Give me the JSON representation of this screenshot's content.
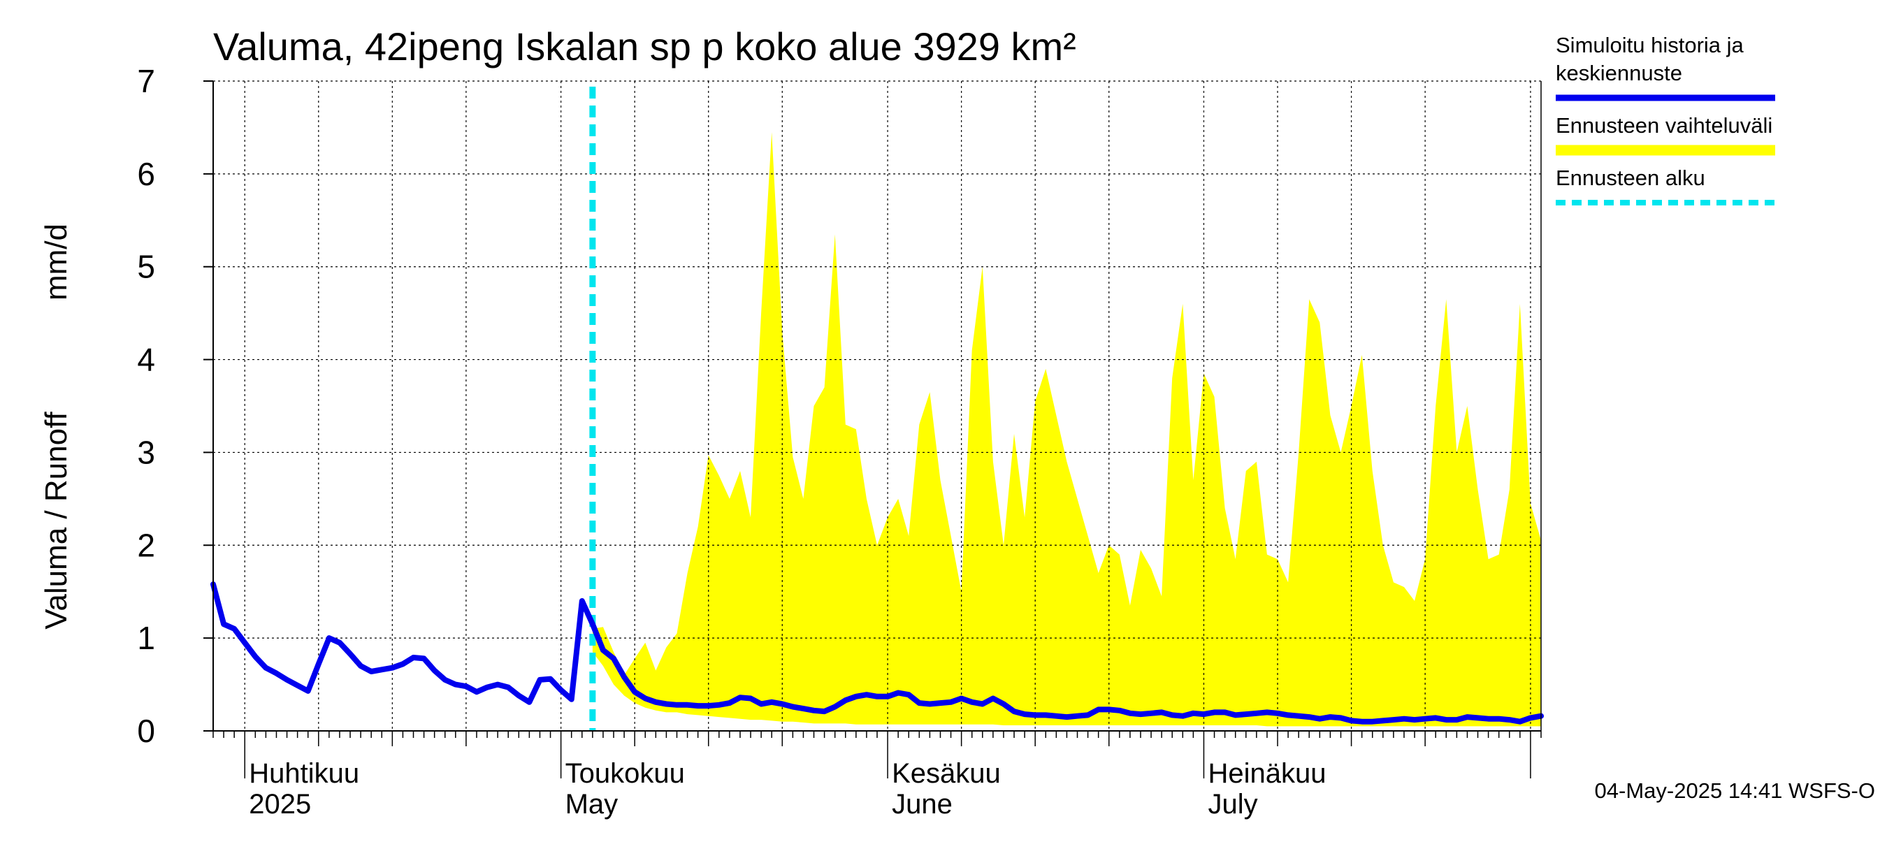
{
  "chart_data": {
    "type": "line",
    "title": "Valuma, 42ipeng Iskalan sp p koko alue 3929 km²",
    "ylabel_left": "Valuma / Runoff",
    "ylabel_unit": "mm/d",
    "ylim": [
      0,
      7
    ],
    "yticks": [
      0,
      1,
      2,
      3,
      4,
      5,
      6,
      7
    ],
    "x_start": "2025-03-29",
    "x_end": "2025-08-02",
    "forecast_start": "2025-05-04",
    "grid": true,
    "legend_position": "right",
    "month_ticks": [
      {
        "date": "2025-04-01",
        "label_fi": "Huhtikuu",
        "label_en": "2025"
      },
      {
        "date": "2025-05-01",
        "label_fi": "Toukokuu",
        "label_en": "May"
      },
      {
        "date": "2025-06-01",
        "label_fi": "Kesäkuu",
        "label_en": "June"
      },
      {
        "date": "2025-07-01",
        "label_fi": "Heinäkuu",
        "label_en": "July"
      }
    ],
    "series": [
      {
        "name": "Simuloitu historia ja keskiennuste",
        "color": "#0000ee",
        "points": [
          [
            "2025-03-29",
            1.58
          ],
          [
            "2025-03-30",
            1.15
          ],
          [
            "2025-03-31",
            1.1
          ],
          [
            "2025-04-01",
            0.95
          ],
          [
            "2025-04-02",
            0.8
          ],
          [
            "2025-04-03",
            0.68
          ],
          [
            "2025-04-04",
            0.62
          ],
          [
            "2025-04-05",
            0.55
          ],
          [
            "2025-04-06",
            0.49
          ],
          [
            "2025-04-07",
            0.43
          ],
          [
            "2025-04-08",
            0.72
          ],
          [
            "2025-04-09",
            1.0
          ],
          [
            "2025-04-10",
            0.95
          ],
          [
            "2025-04-11",
            0.83
          ],
          [
            "2025-04-12",
            0.7
          ],
          [
            "2025-04-13",
            0.64
          ],
          [
            "2025-04-14",
            0.66
          ],
          [
            "2025-04-15",
            0.68
          ],
          [
            "2025-04-16",
            0.72
          ],
          [
            "2025-04-17",
            0.79
          ],
          [
            "2025-04-18",
            0.78
          ],
          [
            "2025-04-19",
            0.65
          ],
          [
            "2025-04-20",
            0.55
          ],
          [
            "2025-04-21",
            0.5
          ],
          [
            "2025-04-22",
            0.48
          ],
          [
            "2025-04-23",
            0.42
          ],
          [
            "2025-04-24",
            0.47
          ],
          [
            "2025-04-25",
            0.5
          ],
          [
            "2025-04-26",
            0.47
          ],
          [
            "2025-04-27",
            0.38
          ],
          [
            "2025-04-28",
            0.31
          ],
          [
            "2025-04-29",
            0.55
          ],
          [
            "2025-04-30",
            0.56
          ],
          [
            "2025-05-01",
            0.44
          ],
          [
            "2025-05-02",
            0.34
          ],
          [
            "2025-05-03",
            1.4
          ],
          [
            "2025-05-04",
            1.15
          ],
          [
            "2025-05-05",
            0.87
          ],
          [
            "2025-05-06",
            0.78
          ],
          [
            "2025-05-07",
            0.58
          ],
          [
            "2025-05-08",
            0.42
          ],
          [
            "2025-05-09",
            0.35
          ],
          [
            "2025-05-10",
            0.31
          ],
          [
            "2025-05-11",
            0.29
          ],
          [
            "2025-05-12",
            0.28
          ],
          [
            "2025-05-13",
            0.28
          ],
          [
            "2025-05-14",
            0.27
          ],
          [
            "2025-05-15",
            0.27
          ],
          [
            "2025-05-16",
            0.28
          ],
          [
            "2025-05-17",
            0.3
          ],
          [
            "2025-05-18",
            0.36
          ],
          [
            "2025-05-19",
            0.35
          ],
          [
            "2025-05-20",
            0.29
          ],
          [
            "2025-05-21",
            0.31
          ],
          [
            "2025-05-22",
            0.29
          ],
          [
            "2025-05-23",
            0.26
          ],
          [
            "2025-05-24",
            0.24
          ],
          [
            "2025-05-25",
            0.22
          ],
          [
            "2025-05-26",
            0.21
          ],
          [
            "2025-05-27",
            0.26
          ],
          [
            "2025-05-28",
            0.33
          ],
          [
            "2025-05-29",
            0.37
          ],
          [
            "2025-05-30",
            0.39
          ],
          [
            "2025-05-31",
            0.37
          ],
          [
            "2025-06-01",
            0.37
          ],
          [
            "2025-06-02",
            0.41
          ],
          [
            "2025-06-03",
            0.39
          ],
          [
            "2025-06-04",
            0.3
          ],
          [
            "2025-06-05",
            0.29
          ],
          [
            "2025-06-06",
            0.3
          ],
          [
            "2025-06-07",
            0.31
          ],
          [
            "2025-06-08",
            0.35
          ],
          [
            "2025-06-09",
            0.31
          ],
          [
            "2025-06-10",
            0.29
          ],
          [
            "2025-06-11",
            0.35
          ],
          [
            "2025-06-12",
            0.29
          ],
          [
            "2025-06-13",
            0.21
          ],
          [
            "2025-06-14",
            0.18
          ],
          [
            "2025-06-15",
            0.17
          ],
          [
            "2025-06-16",
            0.17
          ],
          [
            "2025-06-17",
            0.16
          ],
          [
            "2025-06-18",
            0.15
          ],
          [
            "2025-06-19",
            0.16
          ],
          [
            "2025-06-20",
            0.17
          ],
          [
            "2025-06-21",
            0.23
          ],
          [
            "2025-06-22",
            0.23
          ],
          [
            "2025-06-23",
            0.22
          ],
          [
            "2025-06-24",
            0.19
          ],
          [
            "2025-06-25",
            0.18
          ],
          [
            "2025-06-26",
            0.19
          ],
          [
            "2025-06-27",
            0.2
          ],
          [
            "2025-06-28",
            0.17
          ],
          [
            "2025-06-29",
            0.16
          ],
          [
            "2025-06-30",
            0.19
          ],
          [
            "2025-07-01",
            0.18
          ],
          [
            "2025-07-02",
            0.2
          ],
          [
            "2025-07-03",
            0.2
          ],
          [
            "2025-07-04",
            0.17
          ],
          [
            "2025-07-05",
            0.18
          ],
          [
            "2025-07-06",
            0.19
          ],
          [
            "2025-07-07",
            0.2
          ],
          [
            "2025-07-08",
            0.19
          ],
          [
            "2025-07-09",
            0.17
          ],
          [
            "2025-07-10",
            0.16
          ],
          [
            "2025-07-11",
            0.15
          ],
          [
            "2025-07-12",
            0.13
          ],
          [
            "2025-07-13",
            0.15
          ],
          [
            "2025-07-14",
            0.14
          ],
          [
            "2025-07-15",
            0.11
          ],
          [
            "2025-07-16",
            0.1
          ],
          [
            "2025-07-17",
            0.1
          ],
          [
            "2025-07-18",
            0.11
          ],
          [
            "2025-07-19",
            0.12
          ],
          [
            "2025-07-20",
            0.13
          ],
          [
            "2025-07-21",
            0.12
          ],
          [
            "2025-07-22",
            0.13
          ],
          [
            "2025-07-23",
            0.14
          ],
          [
            "2025-07-24",
            0.12
          ],
          [
            "2025-07-25",
            0.12
          ],
          [
            "2025-07-26",
            0.15
          ],
          [
            "2025-07-27",
            0.14
          ],
          [
            "2025-07-28",
            0.13
          ],
          [
            "2025-07-29",
            0.13
          ],
          [
            "2025-07-30",
            0.12
          ],
          [
            "2025-07-31",
            0.1
          ],
          [
            "2025-08-01",
            0.14
          ],
          [
            "2025-08-02",
            0.16
          ]
        ]
      },
      {
        "name": "Ennusteen vaihteluväli",
        "color": "#ffff00",
        "band": [
          [
            "2025-05-04",
            1.1,
            0.85
          ],
          [
            "2025-05-05",
            1.12,
            0.7
          ],
          [
            "2025-05-06",
            0.85,
            0.5
          ],
          [
            "2025-05-07",
            0.6,
            0.38
          ],
          [
            "2025-05-08",
            0.78,
            0.3
          ],
          [
            "2025-05-09",
            0.95,
            0.25
          ],
          [
            "2025-05-10",
            0.65,
            0.22
          ],
          [
            "2025-05-11",
            0.9,
            0.2
          ],
          [
            "2025-05-12",
            1.05,
            0.2
          ],
          [
            "2025-05-13",
            1.7,
            0.18
          ],
          [
            "2025-05-14",
            2.2,
            0.17
          ],
          [
            "2025-05-15",
            2.97,
            0.16
          ],
          [
            "2025-05-16",
            2.75,
            0.15
          ],
          [
            "2025-05-17",
            2.5,
            0.14
          ],
          [
            "2025-05-18",
            2.8,
            0.13
          ],
          [
            "2025-05-19",
            2.3,
            0.12
          ],
          [
            "2025-05-20",
            4.5,
            0.12
          ],
          [
            "2025-05-21",
            6.45,
            0.11
          ],
          [
            "2025-05-22",
            4.3,
            0.1
          ],
          [
            "2025-05-23",
            2.95,
            0.1
          ],
          [
            "2025-05-24",
            2.5,
            0.09
          ],
          [
            "2025-05-25",
            3.5,
            0.08
          ],
          [
            "2025-05-26",
            3.7,
            0.08
          ],
          [
            "2025-05-27",
            5.35,
            0.08
          ],
          [
            "2025-05-28",
            3.3,
            0.08
          ],
          [
            "2025-05-29",
            3.25,
            0.07
          ],
          [
            "2025-05-30",
            2.5,
            0.07
          ],
          [
            "2025-05-31",
            2.0,
            0.07
          ],
          [
            "2025-06-01",
            2.3,
            0.07
          ],
          [
            "2025-06-02",
            2.5,
            0.07
          ],
          [
            "2025-06-03",
            2.1,
            0.07
          ],
          [
            "2025-06-04",
            3.3,
            0.07
          ],
          [
            "2025-06-05",
            3.65,
            0.07
          ],
          [
            "2025-06-06",
            2.7,
            0.07
          ],
          [
            "2025-06-07",
            2.1,
            0.07
          ],
          [
            "2025-06-08",
            1.5,
            0.07
          ],
          [
            "2025-06-09",
            4.1,
            0.07
          ],
          [
            "2025-06-10",
            5.0,
            0.07
          ],
          [
            "2025-06-11",
            2.9,
            0.07
          ],
          [
            "2025-06-12",
            2.0,
            0.06
          ],
          [
            "2025-06-13",
            3.2,
            0.06
          ],
          [
            "2025-06-14",
            2.3,
            0.06
          ],
          [
            "2025-06-15",
            3.55,
            0.06
          ],
          [
            "2025-06-16",
            3.9,
            0.06
          ],
          [
            "2025-06-17",
            3.4,
            0.06
          ],
          [
            "2025-06-18",
            2.9,
            0.06
          ],
          [
            "2025-06-19",
            2.5,
            0.06
          ],
          [
            "2025-06-20",
            2.1,
            0.06
          ],
          [
            "2025-06-21",
            1.7,
            0.06
          ],
          [
            "2025-06-22",
            2.0,
            0.06
          ],
          [
            "2025-06-23",
            1.9,
            0.06
          ],
          [
            "2025-06-24",
            1.35,
            0.06
          ],
          [
            "2025-06-25",
            1.95,
            0.06
          ],
          [
            "2025-06-26",
            1.75,
            0.06
          ],
          [
            "2025-06-27",
            1.45,
            0.06
          ],
          [
            "2025-06-28",
            3.8,
            0.06
          ],
          [
            "2025-06-29",
            4.6,
            0.06
          ],
          [
            "2025-06-30",
            2.7,
            0.06
          ],
          [
            "2025-07-01",
            3.85,
            0.06
          ],
          [
            "2025-07-02",
            3.6,
            0.06
          ],
          [
            "2025-07-03",
            2.4,
            0.06
          ],
          [
            "2025-07-04",
            1.85,
            0.06
          ],
          [
            "2025-07-05",
            2.8,
            0.06
          ],
          [
            "2025-07-06",
            2.9,
            0.06
          ],
          [
            "2025-07-07",
            1.9,
            0.05
          ],
          [
            "2025-07-08",
            1.85,
            0.05
          ],
          [
            "2025-07-09",
            1.6,
            0.05
          ],
          [
            "2025-07-10",
            3.0,
            0.05
          ],
          [
            "2025-07-11",
            4.65,
            0.05
          ],
          [
            "2025-07-12",
            4.4,
            0.05
          ],
          [
            "2025-07-13",
            3.4,
            0.05
          ],
          [
            "2025-07-14",
            3.0,
            0.05
          ],
          [
            "2025-07-15",
            3.5,
            0.05
          ],
          [
            "2025-07-16",
            4.05,
            0.05
          ],
          [
            "2025-07-17",
            2.8,
            0.05
          ],
          [
            "2025-07-18",
            2.0,
            0.05
          ],
          [
            "2025-07-19",
            1.6,
            0.05
          ],
          [
            "2025-07-20",
            1.55,
            0.05
          ],
          [
            "2025-07-21",
            1.4,
            0.05
          ],
          [
            "2025-07-22",
            1.85,
            0.05
          ],
          [
            "2025-07-23",
            3.5,
            0.05
          ],
          [
            "2025-07-24",
            4.65,
            0.05
          ],
          [
            "2025-07-25",
            3.0,
            0.05
          ],
          [
            "2025-07-26",
            3.5,
            0.05
          ],
          [
            "2025-07-27",
            2.6,
            0.05
          ],
          [
            "2025-07-28",
            1.85,
            0.05
          ],
          [
            "2025-07-29",
            1.9,
            0.05
          ],
          [
            "2025-07-30",
            2.6,
            0.05
          ],
          [
            "2025-07-31",
            4.6,
            0.05
          ],
          [
            "2025-08-01",
            2.45,
            0.05
          ],
          [
            "2025-08-02",
            2.05,
            0.05
          ]
        ]
      },
      {
        "name": "Ennusteen alku",
        "color": "#00e5ee"
      }
    ],
    "legend": [
      {
        "lines": [
          "Simuloitu historia ja",
          "keskiennuste"
        ],
        "color": "#0000ee",
        "style": "solid"
      },
      {
        "lines": [
          "Ennusteen vaihteluväli"
        ],
        "color": "#ffff00",
        "style": "thick"
      },
      {
        "lines": [
          "Ennusteen alku"
        ],
        "color": "#00e5ee",
        "style": "dashed"
      }
    ]
  },
  "footer": {
    "timestamp": "04-May-2025 14:41 WSFS-O"
  }
}
